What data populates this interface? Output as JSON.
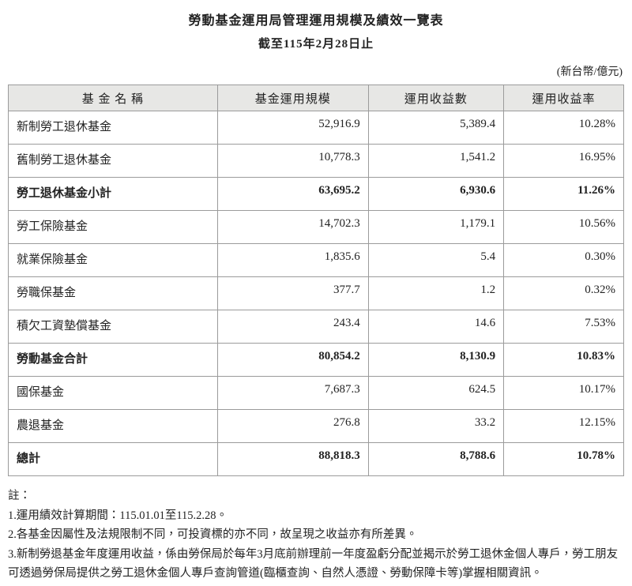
{
  "title": "勞動基金運用局管理運用規模及績效一覽表",
  "subtitle": "截至115年2月28日止",
  "unit_label": "(新台幣/億元)",
  "colors": {
    "header_bg": "#e7e7e5",
    "border": "#9b9b9b",
    "text": "#222222"
  },
  "table": {
    "columns": [
      "基 金 名 稱",
      "基金運用規模",
      "運用收益數",
      "運用收益率"
    ],
    "rows": [
      {
        "name": "新制勞工退休基金",
        "scale": "52,916.9",
        "income": "5,389.4",
        "rate": "10.28%",
        "bold": false
      },
      {
        "name": "舊制勞工退休基金",
        "scale": "10,778.3",
        "income": "1,541.2",
        "rate": "16.95%",
        "bold": false
      },
      {
        "name": "勞工退休基金小計",
        "scale": "63,695.2",
        "income": "6,930.6",
        "rate": "11.26%",
        "bold": true
      },
      {
        "name": "勞工保險基金",
        "scale": "14,702.3",
        "income": "1,179.1",
        "rate": "10.56%",
        "bold": false
      },
      {
        "name": "就業保險基金",
        "scale": "1,835.6",
        "income": "5.4",
        "rate": "0.30%",
        "bold": false
      },
      {
        "name": "勞職保基金",
        "scale": "377.7",
        "income": "1.2",
        "rate": "0.32%",
        "bold": false
      },
      {
        "name": "積欠工資墊償基金",
        "scale": "243.4",
        "income": "14.6",
        "rate": "7.53%",
        "bold": false
      },
      {
        "name": "勞動基金合計",
        "scale": "80,854.2",
        "income": "8,130.9",
        "rate": "10.83%",
        "bold": true
      },
      {
        "name": "國保基金",
        "scale": "7,687.3",
        "income": "624.5",
        "rate": "10.17%",
        "bold": false
      },
      {
        "name": "農退基金",
        "scale": "276.8",
        "income": "33.2",
        "rate": "12.15%",
        "bold": false
      },
      {
        "name": "總計",
        "scale": "88,818.3",
        "income": "8,788.6",
        "rate": "10.78%",
        "bold": true
      }
    ]
  },
  "notes": {
    "label": "註：",
    "items": [
      "1.運用績效計算期間：115.01.01至115.2.28。",
      "2.各基金因屬性及法規限制不同，可投資標的亦不同，故呈現之收益亦有所差異。",
      "3.新制勞退基金年度運用收益，係由勞保局於每年3月底前辦理前一年度盈虧分配並揭示於勞工退休金個人專戶，勞工朋友可透過勞保局提供之勞工退休金個人專戶查詢管道(臨櫃查詢、自然人憑證、勞動保障卡等)掌握相關資訊。"
    ]
  }
}
